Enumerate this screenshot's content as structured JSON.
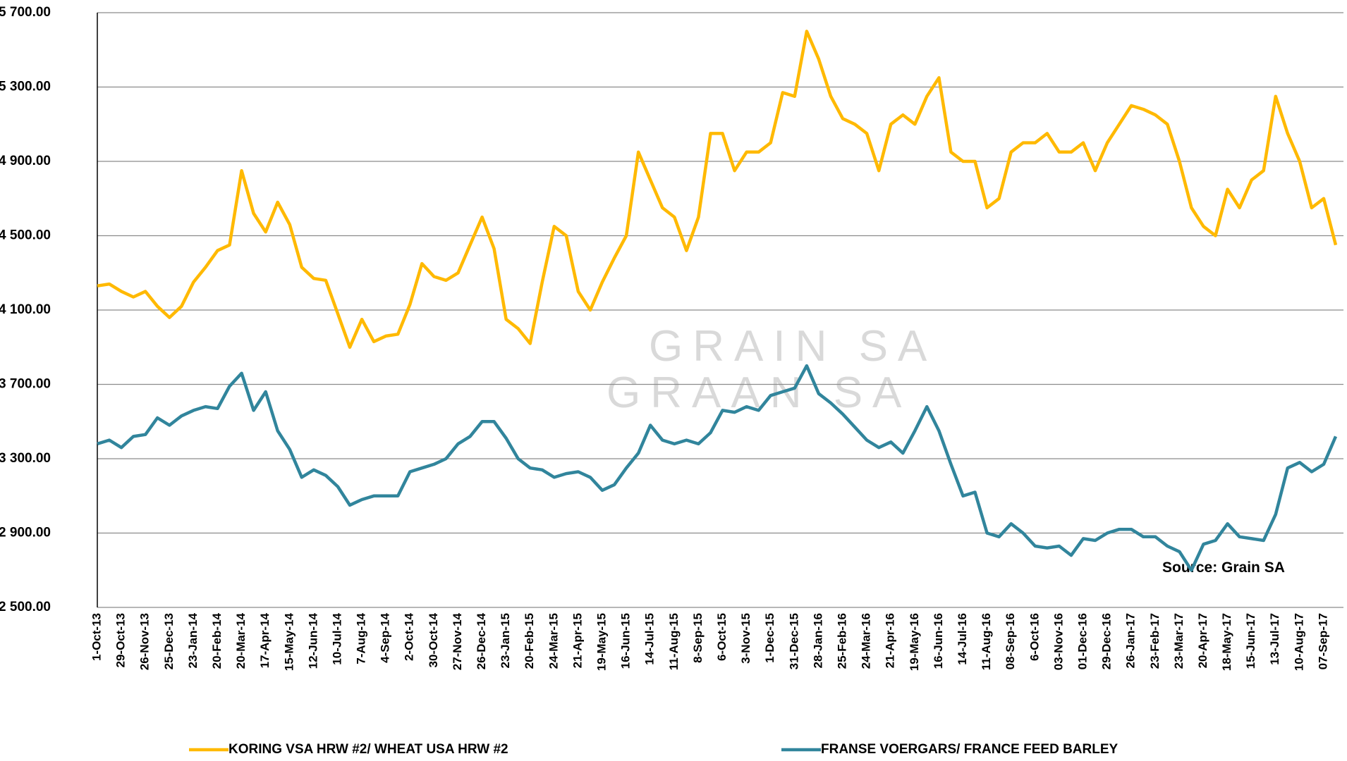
{
  "chart_data": {
    "type": "line",
    "categories": [
      "1-Oct-13",
      null,
      "29-Oct-13",
      null,
      "26-Nov-13",
      null,
      "25-Dec-13",
      null,
      "23-Jan-14",
      null,
      "20-Feb-14",
      null,
      "20-Mar-14",
      null,
      "17-Apr-14",
      null,
      "15-May-14",
      null,
      "12-Jun-14",
      null,
      "10-Jul-14",
      null,
      "7-Aug-14",
      null,
      "4-Sep-14",
      null,
      "2-Oct-14",
      null,
      "30-Oct-14",
      null,
      "27-Nov-14",
      null,
      "26-Dec-14",
      null,
      "23-Jan-15",
      null,
      "20-Feb-15",
      null,
      "24-Mar-15",
      null,
      "21-Apr-15",
      null,
      "19-May-15",
      null,
      "16-Jun-15",
      null,
      "14-Jul-15",
      null,
      "11-Aug-15",
      null,
      "8-Sep-15",
      null,
      "6-Oct-15",
      null,
      "3-Nov-15",
      null,
      "1-Dec-15",
      null,
      "31-Dec-15",
      null,
      "28-Jan-16",
      null,
      "25-Feb-16",
      null,
      "24-Mar-16",
      null,
      "21-Apr-16",
      null,
      "19-May-16",
      null,
      "16-Jun-16",
      null,
      "14-Jul-16",
      null,
      "11-Aug-16",
      null,
      "08-Sep-16",
      null,
      "6-Oct-16",
      null,
      "03-Nov-16",
      null,
      "01-Dec-16",
      null,
      "29-Dec-16",
      null,
      "26-Jan-17",
      null,
      "23-Feb-17",
      null,
      "23-Mar-17",
      null,
      "20-Apr-17",
      null,
      "18-May-17",
      null,
      "15-Jun-17",
      null,
      "13-Jul-17",
      null,
      "10-Aug-17",
      null,
      "07-Sep-17",
      null
    ],
    "series": [
      {
        "name": "KORING VSA HRW #2/ WHEAT USA HRW #2",
        "color": "#FFB900",
        "values": [
          4230,
          4240,
          4200,
          4170,
          4200,
          4120,
          4060,
          4120,
          4250,
          4330,
          4420,
          4450,
          4850,
          4620,
          4520,
          4680,
          4560,
          4330,
          4270,
          4260,
          4080,
          3900,
          4050,
          3930,
          3960,
          3970,
          4130,
          4350,
          4280,
          4260,
          4300,
          4450,
          4600,
          4430,
          4050,
          4000,
          3920,
          4250,
          4550,
          4500,
          4200,
          4100,
          4250,
          4380,
          4500,
          4950,
          4800,
          4650,
          4600,
          4420,
          4600,
          5050,
          5050,
          4850,
          4950,
          4950,
          5000,
          5270,
          5250,
          5600,
          5450,
          5250,
          5130,
          5100,
          5050,
          4850,
          5100,
          5150,
          5100,
          5250,
          5350,
          4950,
          4900,
          4900,
          4650,
          4700,
          4950,
          5000,
          5000,
          5050,
          4950,
          4950,
          5000,
          4850,
          5000,
          5100,
          5200,
          5180,
          5150,
          5100,
          4900,
          4650,
          4550,
          4500,
          4750,
          4650,
          4800,
          4850,
          5250,
          5050,
          4900,
          4650,
          4700,
          4450
        ]
      },
      {
        "name": "FRANSE VOERGARS/ FRANCE FEED BARLEY",
        "color": "#31859C",
        "values": [
          3380,
          3400,
          3360,
          3420,
          3430,
          3520,
          3480,
          3530,
          3560,
          3580,
          3570,
          3690,
          3760,
          3560,
          3660,
          3450,
          3350,
          3200,
          3240,
          3210,
          3150,
          3050,
          3080,
          3100,
          3100,
          3100,
          3230,
          3250,
          3270,
          3300,
          3380,
          3420,
          3500,
          3500,
          3410,
          3300,
          3250,
          3240,
          3200,
          3220,
          3230,
          3200,
          3130,
          3160,
          3250,
          3330,
          3480,
          3400,
          3380,
          3400,
          3380,
          3440,
          3560,
          3550,
          3580,
          3560,
          3640,
          3660,
          3680,
          3800,
          3650,
          3600,
          3540,
          3470,
          3400,
          3360,
          3390,
          3330,
          3450,
          3580,
          3450,
          3270,
          3100,
          3120,
          2900,
          2880,
          2950,
          2900,
          2830,
          2820,
          2830,
          2780,
          2870,
          2860,
          2900,
          2920,
          2920,
          2880,
          2880,
          2830,
          2800,
          2700,
          2840,
          2860,
          2950,
          2880,
          2870,
          2860,
          3000,
          3250,
          3280,
          3230,
          3270,
          3420
        ]
      }
    ],
    "ylim": [
      2500,
      5700
    ],
    "yticks": [
      {
        "value": 2500,
        "label": "2 500.00"
      },
      {
        "value": 2900,
        "label": "2 900.00"
      },
      {
        "value": 3300,
        "label": "3 300.00"
      },
      {
        "value": 3700,
        "label": "3 700.00"
      },
      {
        "value": 4100,
        "label": "4 100.00"
      },
      {
        "value": 4500,
        "label": "4 500.00"
      },
      {
        "value": 4900,
        "label": "4 900.00"
      },
      {
        "value": 5300,
        "label": "5 300.00"
      },
      {
        "value": 5700,
        "label": "5 700.00"
      }
    ],
    "grid": true,
    "annotation": "Source: Grain SA",
    "watermark": [
      "GRAIN SA",
      "GRAAN SA"
    ],
    "legend": "bottom"
  }
}
